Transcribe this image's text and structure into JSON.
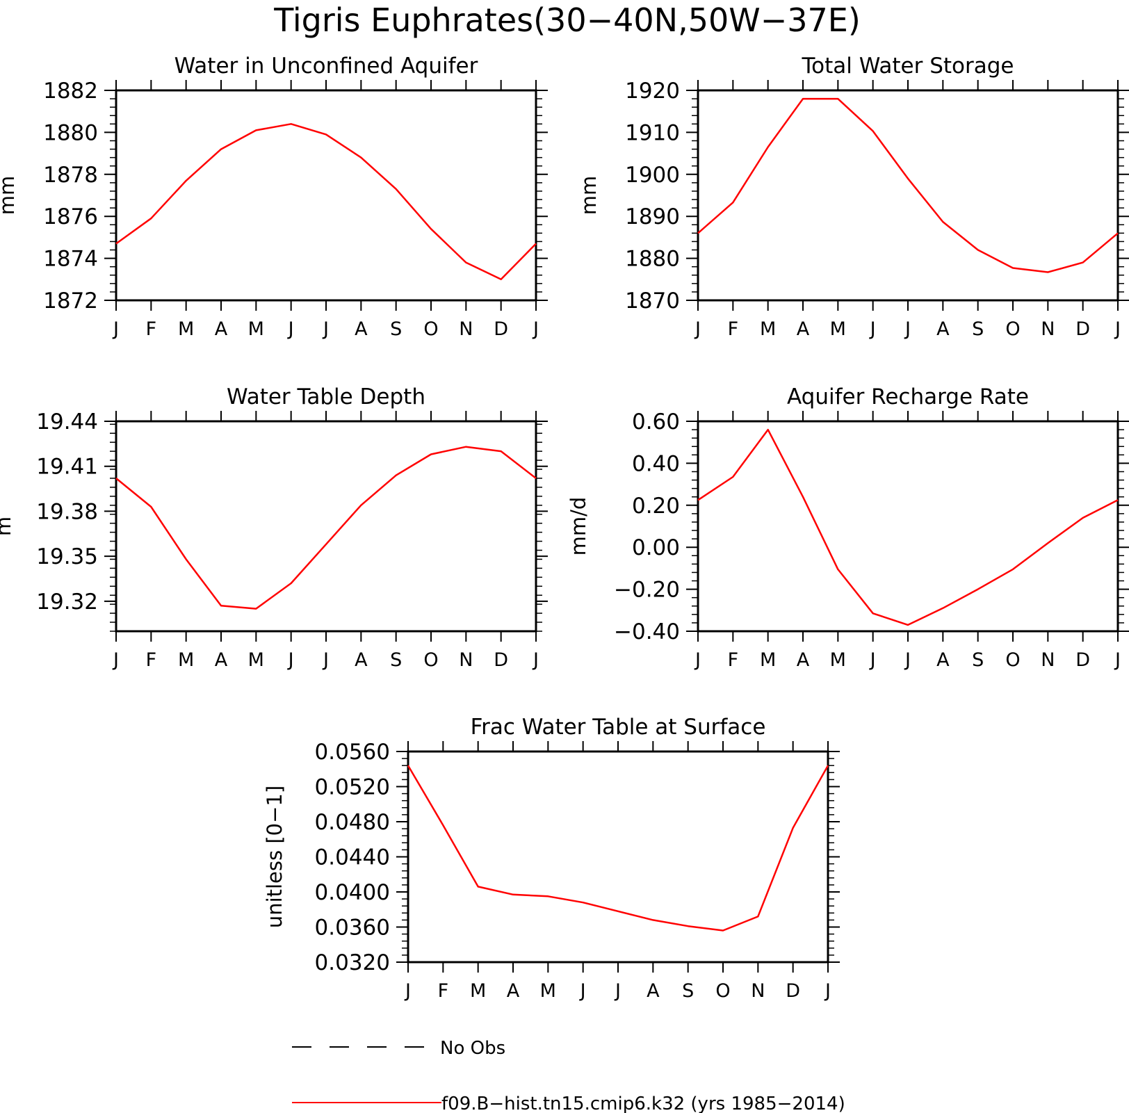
{
  "figure": {
    "title": "Tigris Euphrates(30−40N,50W−37E)"
  },
  "months": [
    "J",
    "F",
    "M",
    "A",
    "M",
    "J",
    "J",
    "A",
    "S",
    "O",
    "N",
    "D",
    "J"
  ],
  "colors": {
    "model_line": "#ff0000",
    "obs_line": "#000000",
    "axis": "#000000"
  },
  "legend": [
    {
      "label": "No Obs",
      "style": "dashed",
      "color": "#000000"
    },
    {
      "label": "f09.B−hist.tn15.cmip6.k32 (yrs 1985−2014)",
      "style": "solid",
      "color": "#ff0000"
    }
  ],
  "chart_data": [
    {
      "type": "line",
      "title": "Water in Unconfined Aquifer",
      "ylabel": "mm",
      "ylim": [
        1872,
        1882
      ],
      "yticks": [
        "1872",
        "1874",
        "1876",
        "1878",
        "1880",
        "1882"
      ],
      "series": [
        {
          "name": "f09.B−hist.tn15.cmip6.k32 (yrs 1985−2014)",
          "values": [
            1874.7,
            1875.9,
            1877.7,
            1879.2,
            1880.1,
            1880.4,
            1879.9,
            1878.8,
            1877.3,
            1875.4,
            1873.8,
            1873.0,
            1874.7
          ]
        }
      ]
    },
    {
      "type": "line",
      "title": "Total Water Storage",
      "ylabel": "mm",
      "ylim": [
        1870,
        1920
      ],
      "yticks": [
        "1870",
        "1880",
        "1890",
        "1900",
        "1910",
        "1920"
      ],
      "series": [
        {
          "name": "f09.B−hist.tn15.cmip6.k32 (yrs 1985−2014)",
          "values": [
            1886.0,
            1893.3,
            1906.5,
            1918.0,
            1918.0,
            1910.3,
            1899.0,
            1888.7,
            1882.0,
            1877.7,
            1876.7,
            1879.0,
            1886.0
          ]
        }
      ]
    },
    {
      "type": "line",
      "title": "Water Table Depth",
      "ylabel": "m",
      "ylim": [
        19.3,
        19.44
      ],
      "yticks": [
        "19.32",
        "19.35",
        "19.38",
        "19.41",
        "19.44"
      ],
      "ytick_values": [
        19.32,
        19.35,
        19.38,
        19.41,
        19.44
      ],
      "series": [
        {
          "name": "f09.B−hist.tn15.cmip6.k32 (yrs 1985−2014)",
          "values": [
            19.402,
            19.383,
            19.348,
            19.317,
            19.315,
            19.332,
            19.358,
            19.384,
            19.404,
            19.418,
            19.423,
            19.42,
            19.402
          ]
        }
      ]
    },
    {
      "type": "line",
      "title": "Aquifer Recharge Rate",
      "ylabel": "mm/d",
      "ylim": [
        -0.4,
        0.6
      ],
      "yticks": [
        "−0.40",
        "−0.20",
        "0.00",
        "0.20",
        "0.40",
        "0.60"
      ],
      "series": [
        {
          "name": "f09.B−hist.tn15.cmip6.k32 (yrs 1985−2014)",
          "values": [
            0.225,
            0.335,
            0.56,
            0.24,
            -0.105,
            -0.315,
            -0.37,
            -0.29,
            -0.2,
            -0.105,
            0.02,
            0.14,
            0.225
          ]
        }
      ]
    },
    {
      "type": "line",
      "title": "Frac Water Table at Surface",
      "ylabel": "unitless [0−1]",
      "ylim": [
        0.032,
        0.056
      ],
      "yticks": [
        "0.0320",
        "0.0360",
        "0.0400",
        "0.0440",
        "0.0480",
        "0.0520",
        "0.0560"
      ],
      "series": [
        {
          "name": "f09.B−hist.tn15.cmip6.k32 (yrs 1985−2014)",
          "values": [
            0.0544,
            0.0476,
            0.0406,
            0.0397,
            0.0395,
            0.0388,
            0.0378,
            0.0368,
            0.0361,
            0.0356,
            0.0372,
            0.0473,
            0.0544
          ]
        }
      ]
    }
  ]
}
